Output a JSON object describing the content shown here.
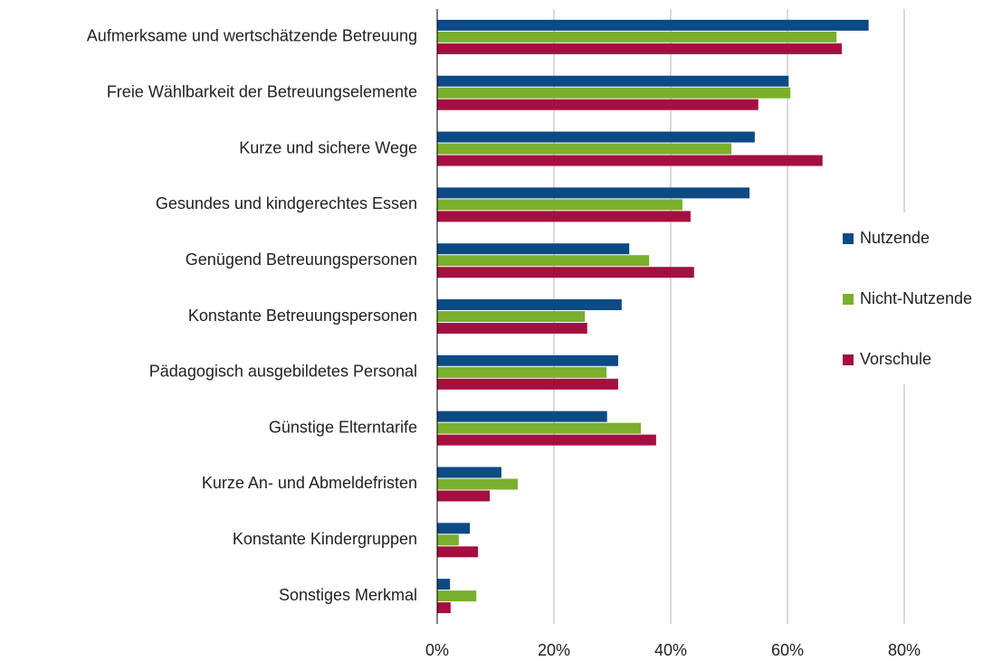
{
  "chart_data": {
    "type": "bar",
    "orientation": "horizontal",
    "categories": [
      "Aufmerksame und wertschätzende Betreuung",
      "Freie Wählbarkeit der Betreuungselemente",
      "Kurze und sichere Wege",
      "Gesundes und kindgerechtes Essen",
      "Genügend Betreuungspersonen",
      "Konstante Betreuungspersonen",
      "Pädagogisch ausgebildetes Personal",
      "Günstige Elterntarife",
      "Kurze An- und Abmeldefristen",
      "Konstante Kindergruppen",
      "Sonstiges Merkmal"
    ],
    "series": [
      {
        "name": "Nutzende",
        "color": "#0d4a85",
        "values": [
          73.9,
          60.2,
          54.4,
          53.5,
          32.9,
          31.6,
          31.0,
          29.1,
          11.0,
          5.6,
          2.2
        ]
      },
      {
        "name": "Nicht-Nutzende",
        "color": "#7ab02c",
        "values": [
          68.4,
          60.5,
          50.4,
          42.0,
          36.3,
          25.3,
          29.0,
          34.9,
          13.8,
          3.7,
          6.7
        ]
      },
      {
        "name": "Vorschule",
        "color": "#a50f40",
        "values": [
          69.3,
          55.0,
          66.0,
          43.4,
          44.0,
          25.7,
          31.0,
          37.5,
          9.0,
          7.0,
          2.3
        ]
      }
    ],
    "xlim": [
      0,
      80
    ],
    "xticks": [
      {
        "value": 0,
        "label": "0%"
      },
      {
        "value": 20,
        "label": "20%"
      },
      {
        "value": 40,
        "label": "40%"
      },
      {
        "value": 60,
        "label": "60%"
      },
      {
        "value": 80,
        "label": "80%"
      }
    ],
    "grid": true,
    "legend": "right"
  }
}
